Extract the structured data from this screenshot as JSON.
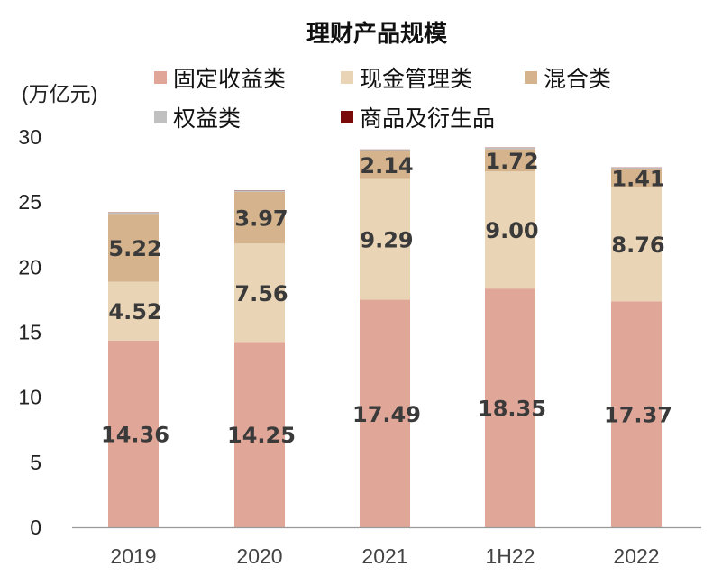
{
  "chart_data": {
    "type": "bar",
    "stacked": true,
    "title": "理财产品规模",
    "ylabel": "(万亿元)",
    "ylim": [
      0,
      30
    ],
    "yticks": [
      0,
      5,
      10,
      15,
      20,
      25,
      30
    ],
    "grid": false,
    "legend_position": "top",
    "categories": [
      "2019",
      "2020",
      "2021",
      "1H22",
      "2022"
    ],
    "series": [
      {
        "name": "固定收益类",
        "color": "#e0a798",
        "values": [
          14.36,
          14.25,
          17.49,
          18.35,
          17.37
        ],
        "labels": [
          "14.36",
          "14.25",
          "17.49",
          "18.35",
          "17.37"
        ]
      },
      {
        "name": "现金管理类",
        "color": "#e9d4b6",
        "values": [
          4.52,
          7.56,
          9.29,
          9.0,
          8.76
        ],
        "labels": [
          "4.52",
          "7.56",
          "9.29",
          "9.00",
          "8.76"
        ]
      },
      {
        "name": "混合类",
        "color": "#d4b38d",
        "values": [
          5.22,
          3.97,
          2.14,
          1.72,
          1.41
        ],
        "labels": [
          "5.22",
          "3.97",
          "2.14",
          "1.72",
          "1.41"
        ]
      },
      {
        "name": "权益类",
        "color": "#c0c0c0",
        "values": [
          0.1,
          0.1,
          0.1,
          0.1,
          0.1
        ],
        "labels": []
      },
      {
        "name": "商品及衍生品",
        "color": "#7a0a0a",
        "values": [
          0.02,
          0.02,
          0.02,
          0.02,
          0.02
        ],
        "labels": []
      }
    ]
  }
}
